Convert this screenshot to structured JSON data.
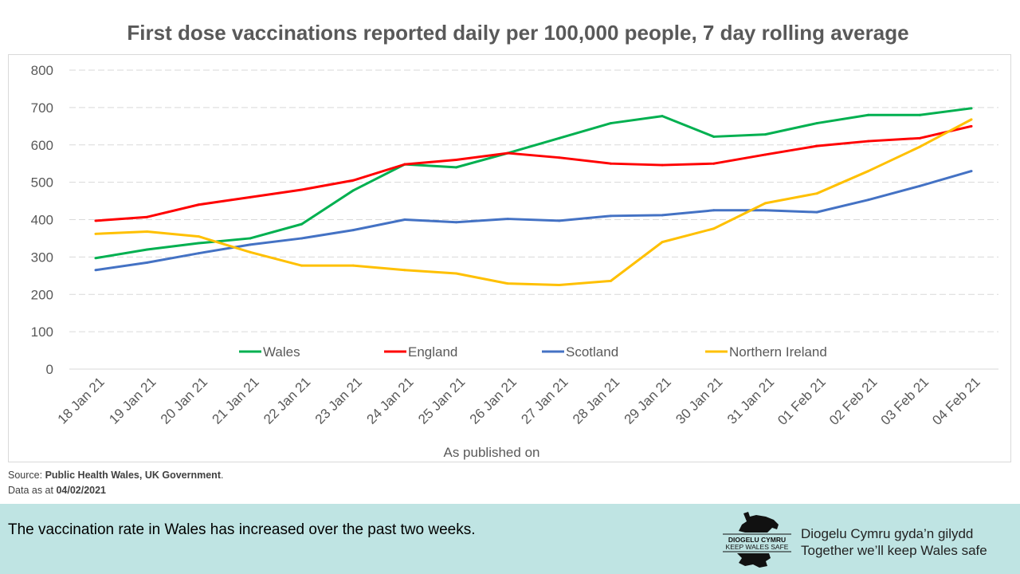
{
  "chart_data": {
    "type": "line",
    "title": "First dose vaccinations reported daily per 100,000 people, 7 day rolling average",
    "xlabel": "As published on",
    "ylabel": "",
    "ylim": [
      0,
      800
    ],
    "yticks": [
      0,
      100,
      200,
      300,
      400,
      500,
      600,
      700,
      800
    ],
    "grid": true,
    "legend_position": "inside-bottom",
    "categories": [
      "18 Jan 21",
      "19 Jan 21",
      "20 Jan 21",
      "21 Jan 21",
      "22 Jan 21",
      "23 Jan 21",
      "24 Jan 21",
      "25 Jan 21",
      "26 Jan 21",
      "27 Jan 21",
      "28 Jan 21",
      "29 Jan 21",
      "30 Jan 21",
      "31 Jan 21",
      "01 Feb 21",
      "02 Feb 21",
      "03 Feb 21",
      "04 Feb 21"
    ],
    "series": [
      {
        "name": "Wales",
        "color": "#00b050",
        "values": [
          297,
          320,
          337,
          350,
          388,
          478,
          548,
          540,
          578,
          618,
          658,
          677,
          622,
          628,
          658,
          680,
          680,
          698
        ]
      },
      {
        "name": "England",
        "color": "#ff0000",
        "values": [
          397,
          407,
          440,
          460,
          480,
          505,
          548,
          560,
          578,
          566,
          550,
          546,
          550,
          574,
          597,
          610,
          618,
          650
        ]
      },
      {
        "name": "Scotland",
        "color": "#4472c4",
        "values": [
          265,
          285,
          310,
          333,
          350,
          372,
          400,
          393,
          402,
          397,
          410,
          412,
          425,
          425,
          420,
          453,
          490,
          530
        ]
      },
      {
        "name": "Northern Ireland",
        "color": "#ffc000",
        "values": [
          362,
          368,
          355,
          313,
          277,
          277,
          265,
          256,
          229,
          225,
          236,
          340,
          376,
          444,
          470,
          530,
          595,
          668
        ]
      }
    ]
  },
  "source": {
    "prefix": "Source: ",
    "names": "Public Health Wales, UK Government",
    "suffix": ".",
    "data_prefix": "Data as at ",
    "date": "04/02/2021"
  },
  "footer": {
    "message": "The vaccination rate in Wales has increased over the past two weeks.",
    "logo_text_cy": "DIOGELU CYMRU",
    "logo_text_en": "KEEP WALES SAFE",
    "slogan_cy": "Diogelu Cymru gyda’n gilydd",
    "slogan_en": "Together we’ll keep Wales safe"
  }
}
